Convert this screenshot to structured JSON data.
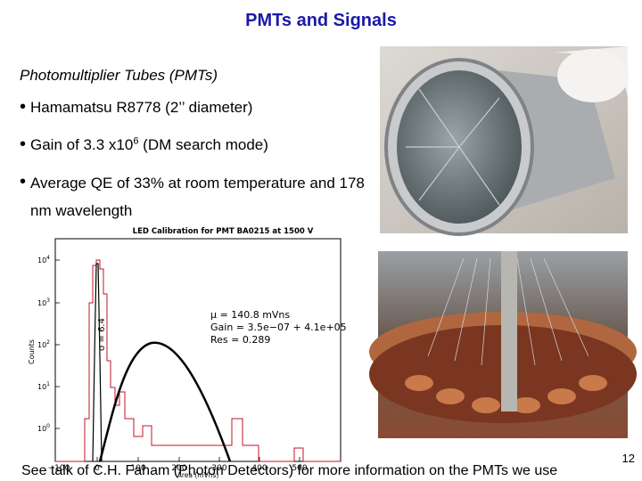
{
  "title": "PMTs and Signals",
  "subtitle": "Photomultiplier Tubes (PMTs)",
  "bullets": [
    {
      "text": "Hamamatsu R8778 (2’’ diameter)"
    },
    {
      "text": "Gain of 3.3 x10",
      "sup": "6",
      "after": " (DM search mode)"
    },
    {
      "text": "Average QE of 33% at room temperature and 178 nm wavelength"
    }
  ],
  "figure": {
    "title": "LED Calibration for PMT BA0215 at 1500 V",
    "x_label": "Area (mVns)",
    "y_label": "Counts",
    "x_ticks": [
      "−100",
      "0",
      "100",
      "200",
      "300",
      "400",
      "500"
    ],
    "y_ticks": [
      {
        "base": "10",
        "exp": "4"
      },
      {
        "base": "10",
        "exp": "3"
      },
      {
        "base": "10",
        "exp": "2"
      },
      {
        "base": "10",
        "exp": "1"
      },
      {
        "base": "10",
        "exp": "0"
      }
    ],
    "annotations": [
      "μ = 140.8 mVns",
      "Gain = 3.5e−07 + 4.1e+05",
      "Res = 0.289"
    ],
    "sigma": "σ = 6.4"
  },
  "page_number": "12",
  "footer": "See talk of C.H. Faham (Photon Detectors) for more information on the PMTs we use"
}
